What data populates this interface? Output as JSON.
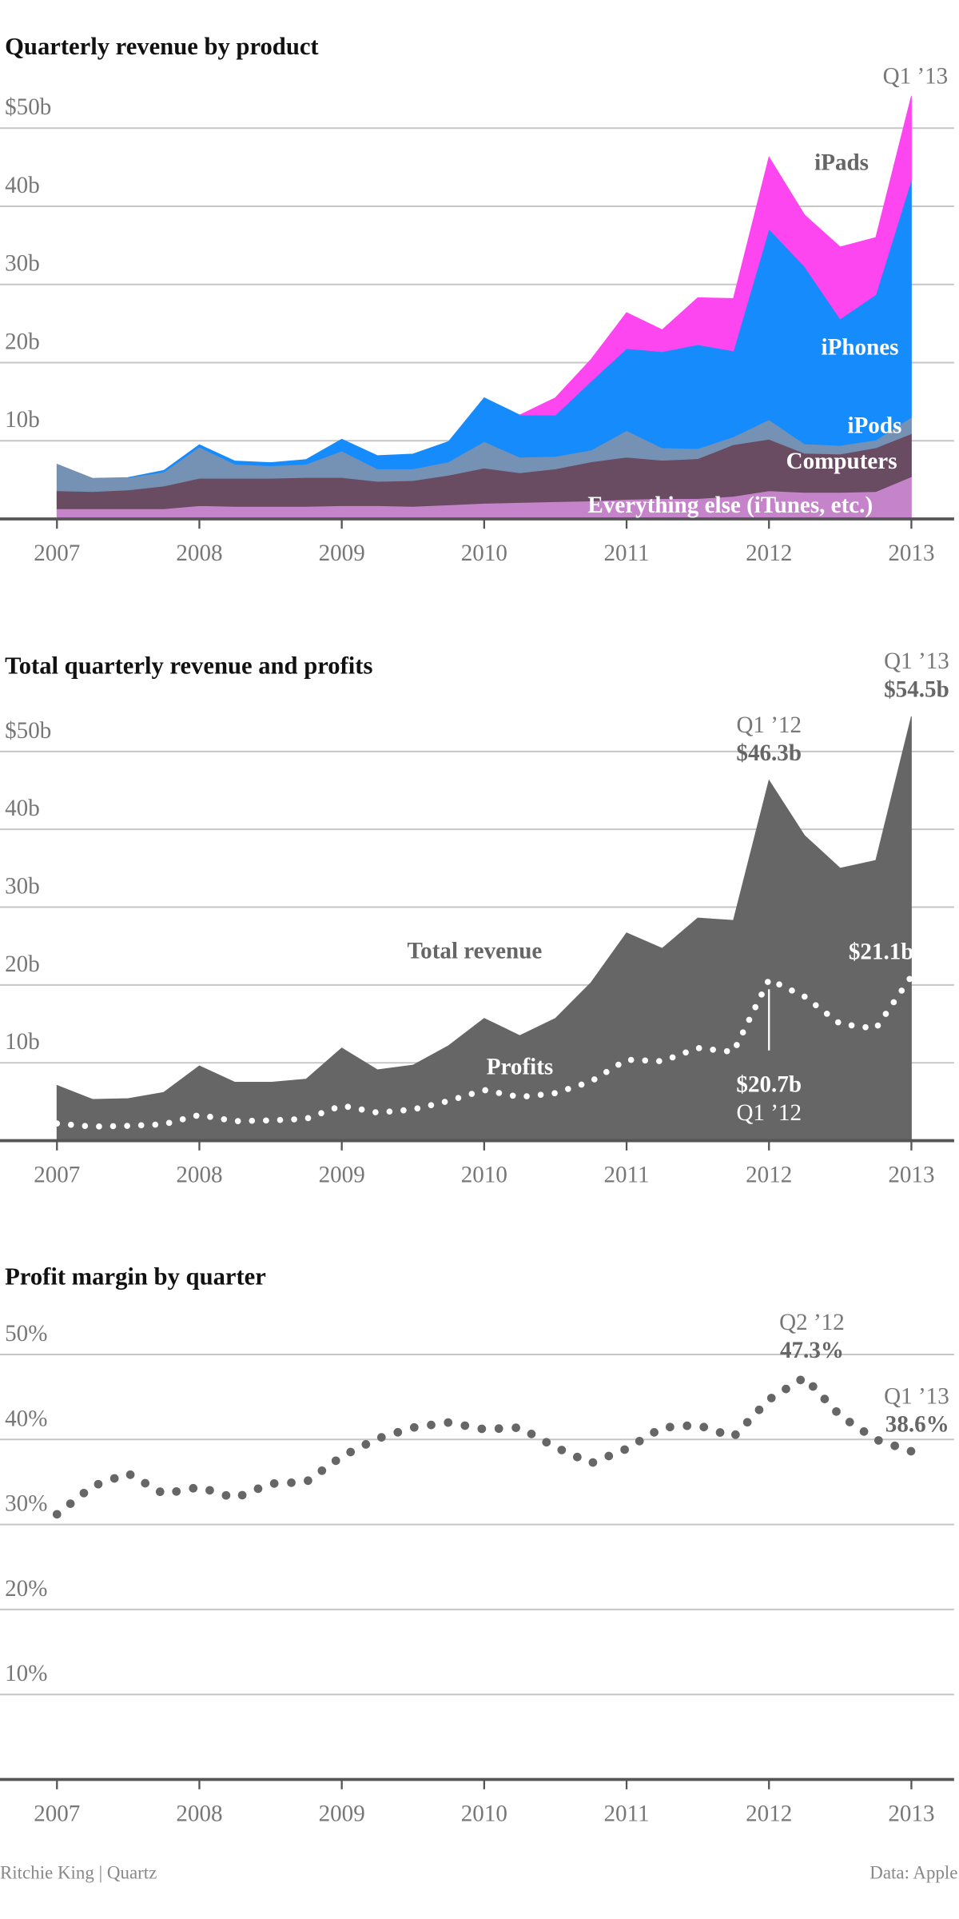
{
  "chart_data": [
    {
      "type": "area",
      "stacked": true,
      "title": "Quarterly revenue by product",
      "x": [
        2007,
        2007.25,
        2007.5,
        2007.75,
        2008,
        2008.25,
        2008.5,
        2008.75,
        2009,
        2009.25,
        2009.5,
        2009.75,
        2010,
        2010.25,
        2010.5,
        2010.75,
        2011,
        2011.25,
        2011.5,
        2011.75,
        2012,
        2012.25,
        2012.5,
        2012.75,
        2013
      ],
      "xlim": [
        2006.6,
        2013.3
      ],
      "xticks": [
        2007,
        2008,
        2009,
        2010,
        2011,
        2012,
        2013
      ],
      "ylim": [
        0,
        57
      ],
      "yticks": [
        {
          "value": 10,
          "label": "10b"
        },
        {
          "value": 20,
          "label": "20b"
        },
        {
          "value": 30,
          "label": "30b"
        },
        {
          "value": 40,
          "label": "40b"
        },
        {
          "value": 50,
          "label": "$50b"
        }
      ],
      "grid": true,
      "period_labels": [
        null,
        null,
        null,
        null,
        null,
        null,
        null,
        null,
        null,
        null,
        null,
        null,
        null,
        null,
        null,
        null,
        null,
        null,
        null,
        null,
        null,
        null,
        null,
        null,
        "Q1 ’13"
      ],
      "series": [
        {
          "name": "Everything else (iTunes, etc.)",
          "color": "#c584c9",
          "values": [
            1.3,
            1.3,
            1.3,
            1.3,
            1.7,
            1.6,
            1.6,
            1.6,
            1.7,
            1.7,
            1.6,
            1.8,
            2.0,
            2.1,
            2.2,
            2.3,
            2.5,
            2.6,
            2.6,
            2.9,
            3.6,
            3.4,
            3.4,
            3.5,
            5.4
          ]
        },
        {
          "name": "Computers",
          "color": "#694b62",
          "values": [
            2.3,
            2.2,
            2.4,
            2.9,
            3.5,
            3.6,
            3.6,
            3.7,
            3.6,
            3.1,
            3.3,
            3.8,
            4.5,
            3.8,
            4.2,
            5.0,
            5.4,
            4.9,
            5.1,
            6.6,
            6.6,
            5.0,
            4.9,
            5.6,
            5.5
          ]
        },
        {
          "name": "iPods",
          "color": "#7591b3",
          "values": [
            3.4,
            1.7,
            1.6,
            1.8,
            4.0,
            1.8,
            1.6,
            1.7,
            3.4,
            1.6,
            1.5,
            1.7,
            3.4,
            2.0,
            1.6,
            1.5,
            3.4,
            1.6,
            1.3,
            1.0,
            2.5,
            1.2,
            1.1,
            1.0,
            2.1
          ]
        },
        {
          "name": "iPhones",
          "color": "#168cfc",
          "values": [
            null,
            null,
            0,
            0.2,
            0.3,
            0.4,
            0.4,
            0.6,
            1.5,
            1.7,
            1.9,
            2.6,
            5.6,
            5.4,
            5.3,
            8.8,
            10.5,
            12.3,
            13.3,
            11.0,
            24.4,
            22.7,
            16.2,
            18.6,
            30.4
          ]
        },
        {
          "name": "iPads",
          "color": "#fd45f0",
          "values": [
            null,
            null,
            null,
            null,
            null,
            null,
            null,
            null,
            null,
            null,
            null,
            null,
            null,
            0,
            2.2,
            2.8,
            4.6,
            2.8,
            6.0,
            6.7,
            9.2,
            6.6,
            9.2,
            7.3,
            10.7
          ]
        }
      ]
    },
    {
      "type": "area",
      "stacked": false,
      "title": "Total quarterly revenue and profits",
      "x": [
        2007,
        2007.25,
        2007.5,
        2007.75,
        2008,
        2008.25,
        2008.5,
        2008.75,
        2009,
        2009.25,
        2009.5,
        2009.75,
        2010,
        2010.25,
        2010.5,
        2010.75,
        2011,
        2011.25,
        2011.5,
        2011.75,
        2012,
        2012.25,
        2012.5,
        2012.75,
        2013
      ],
      "xlim": [
        2006.6,
        2013.3
      ],
      "xticks": [
        2007,
        2008,
        2009,
        2010,
        2011,
        2012,
        2013
      ],
      "ylim": [
        0,
        57
      ],
      "yticks": [
        {
          "value": 10,
          "label": "10b"
        },
        {
          "value": 20,
          "label": "20b"
        },
        {
          "value": 30,
          "label": "30b"
        },
        {
          "value": 40,
          "label": "40b"
        },
        {
          "value": 50,
          "label": "$50b"
        }
      ],
      "grid": true,
      "series": [
        {
          "name": "Total revenue",
          "color": "#666666",
          "style": "filled",
          "values": [
            7.1,
            5.3,
            5.4,
            6.2,
            9.6,
            7.5,
            7.5,
            7.9,
            11.9,
            9.1,
            9.7,
            12.2,
            15.7,
            13.5,
            15.7,
            20.3,
            26.7,
            24.7,
            28.6,
            28.3,
            46.3,
            39.2,
            35.0,
            36.0,
            54.5
          ],
          "value_labels": [
            null,
            null,
            null,
            null,
            null,
            null,
            null,
            null,
            null,
            null,
            null,
            null,
            null,
            null,
            null,
            null,
            null,
            null,
            null,
            null,
            "$46.3b",
            null,
            null,
            null,
            "$54.5b"
          ],
          "period_labels": [
            null,
            null,
            null,
            null,
            null,
            null,
            null,
            null,
            null,
            null,
            null,
            null,
            null,
            null,
            null,
            null,
            null,
            null,
            null,
            null,
            "Q1 ’12",
            null,
            null,
            null,
            "Q1 ’13"
          ]
        },
        {
          "name": "Profits",
          "color": "#ffffff",
          "style": "dotted",
          "values": [
            2.2,
            1.8,
            1.9,
            2.1,
            3.3,
            2.5,
            2.6,
            2.8,
            4.5,
            3.6,
            4.0,
            5.1,
            6.5,
            5.6,
            6.1,
            7.6,
            10.4,
            10.2,
            11.9,
            11.4,
            20.7,
            18.5,
            15.0,
            14.4,
            21.1
          ],
          "value_labels": [
            null,
            null,
            null,
            null,
            null,
            null,
            null,
            null,
            null,
            null,
            null,
            null,
            null,
            null,
            null,
            null,
            null,
            null,
            null,
            null,
            "$20.7b",
            null,
            null,
            null,
            "$21.1b"
          ],
          "period_labels": [
            null,
            null,
            null,
            null,
            null,
            null,
            null,
            null,
            null,
            null,
            null,
            null,
            null,
            null,
            null,
            null,
            null,
            null,
            null,
            null,
            "Q1 ’12",
            null,
            null,
            null,
            null
          ]
        }
      ]
    },
    {
      "type": "line",
      "stacked": false,
      "title": "Profit margin by quarter",
      "x": [
        2007,
        2007.25,
        2007.5,
        2007.75,
        2008,
        2008.25,
        2008.5,
        2008.75,
        2009,
        2009.25,
        2009.5,
        2009.75,
        2010,
        2010.25,
        2010.5,
        2010.75,
        2011,
        2011.25,
        2011.5,
        2011.75,
        2012,
        2012.25,
        2012.5,
        2012.75,
        2013
      ],
      "xlim": [
        2006.6,
        2013.3
      ],
      "xticks": [
        2007,
        2008,
        2009,
        2010,
        2011,
        2012,
        2013
      ],
      "ylim": [
        0,
        55
      ],
      "yticks": [
        {
          "value": 10,
          "label": "10%"
        },
        {
          "value": 20,
          "label": "20%"
        },
        {
          "value": 30,
          "label": "30%"
        },
        {
          "value": 40,
          "label": "40%"
        },
        {
          "value": 50,
          "label": "50%"
        }
      ],
      "grid": true,
      "series": [
        {
          "color": "#666666",
          "style": "dotted",
          "values": [
            31.2,
            34.5,
            36.0,
            33.6,
            34.4,
            33.1,
            34.8,
            35.0,
            38.0,
            40.1,
            41.4,
            42.0,
            41.2,
            41.4,
            39.1,
            37.2,
            38.9,
            41.4,
            41.7,
            40.3,
            44.7,
            47.3,
            42.8,
            40.0,
            38.6
          ],
          "value_labels": [
            null,
            null,
            null,
            null,
            null,
            null,
            null,
            null,
            null,
            null,
            null,
            null,
            null,
            null,
            null,
            null,
            null,
            null,
            null,
            null,
            null,
            "47.3%",
            null,
            null,
            "38.6%"
          ],
          "period_labels": [
            null,
            null,
            null,
            null,
            null,
            null,
            null,
            null,
            null,
            null,
            null,
            null,
            null,
            null,
            null,
            null,
            null,
            null,
            null,
            null,
            null,
            "Q2 ’12",
            null,
            null,
            "Q1 ’13"
          ]
        }
      ]
    }
  ],
  "footer": {
    "credit": "Ritchie King | Quartz",
    "source": "Data: Apple"
  }
}
